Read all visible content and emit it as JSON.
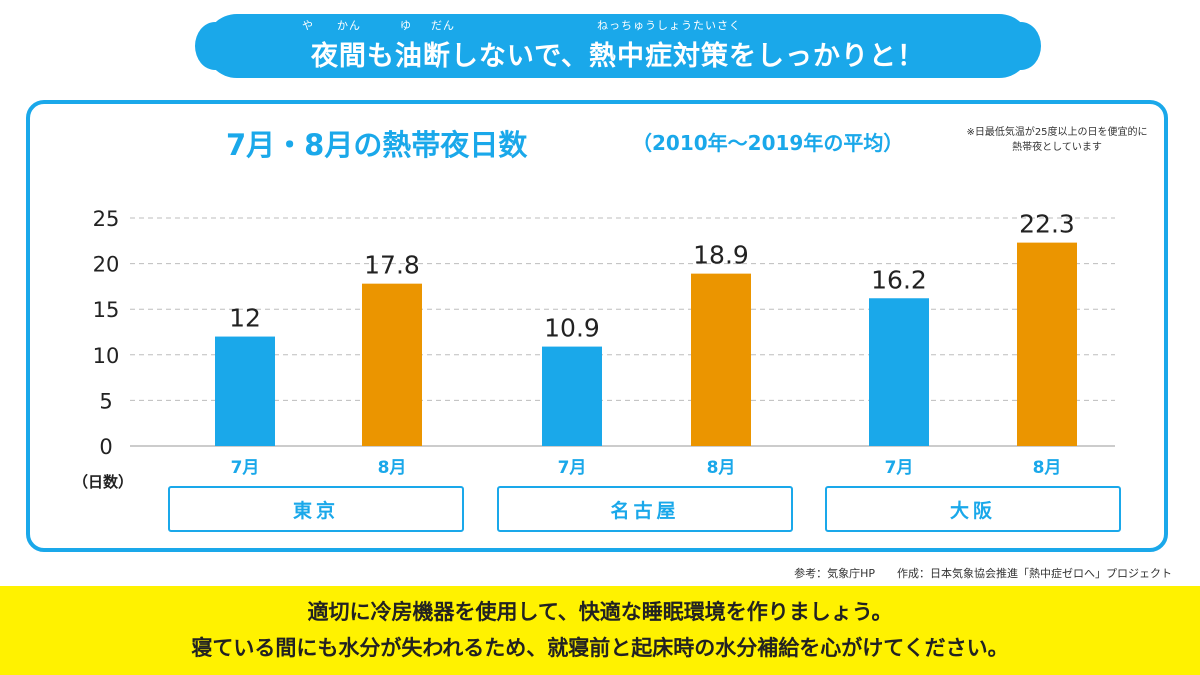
{
  "header": {
    "ruby": [
      "や",
      "かん",
      "ゆ",
      "だん",
      "ねっちゅうしょうたいさく"
    ],
    "headline": "夜間も油断しないで、熱中症対策をしっかりと！"
  },
  "chart_data": {
    "type": "bar",
    "title": "7月・8月の熱帯夜日数",
    "subtitle": "（2010年～2019年の平均）",
    "note": "※日最低気温が25度以上の日を便宜的に熱帯夜としています",
    "ylabel": "（日数）",
    "ylim": [
      0,
      25
    ],
    "yticks": [
      0,
      5,
      10,
      15,
      20,
      25
    ],
    "grid": true,
    "groups": [
      "東京",
      "名古屋",
      "大阪"
    ],
    "categories": [
      "7月",
      "8月",
      "7月",
      "8月",
      "7月",
      "8月"
    ],
    "values": [
      12,
      17.8,
      10.9,
      18.9,
      16.2,
      22.3
    ],
    "value_labels": [
      "12",
      "17.8",
      "10.9",
      "18.9",
      "16.2",
      "22.3"
    ],
    "colors": {
      "july": "#1aa8ea",
      "august": "#eb9500",
      "accent": "#1aa8ea",
      "footer": "#fff200"
    }
  },
  "credit": "参考：気象庁HP　　作成：日本気象協会推進「熱中症ゼロへ」プロジェクト",
  "footer": {
    "line1": "適切に冷房機器を使用して、快適な睡眠環境を作りましょう。",
    "line2": "寝ている間にも水分が失われるため、就寝前と起床時の水分補給を心がけてください。"
  }
}
